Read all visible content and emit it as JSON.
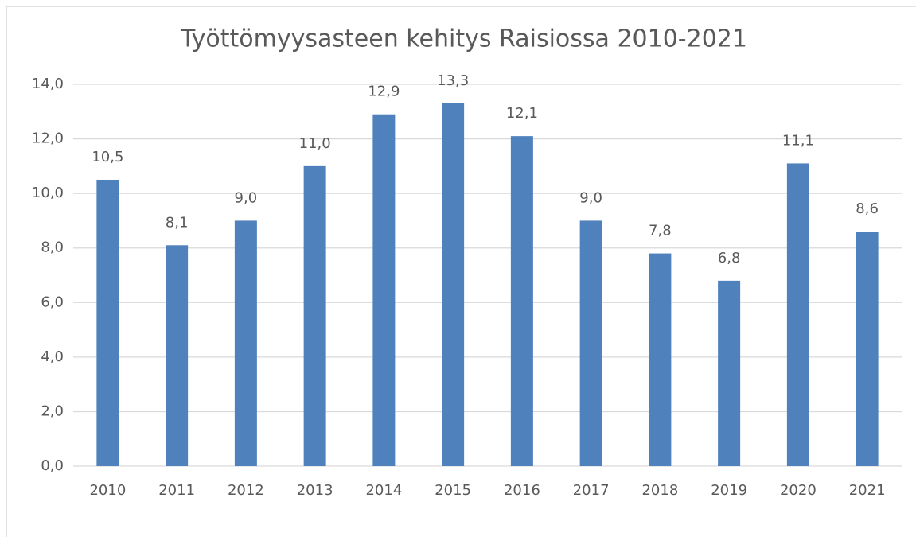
{
  "chart_data": {
    "type": "bar",
    "title": "Työttömyysasteen kehitys Raisiossa 2010-2021",
    "categories": [
      "2010",
      "2011",
      "2012",
      "2013",
      "2014",
      "2015",
      "2016",
      "2017",
      "2018",
      "2019",
      "2020",
      "2021"
    ],
    "values": [
      10.5,
      8.1,
      9.0,
      11.0,
      12.9,
      13.3,
      12.1,
      9.0,
      7.8,
      6.8,
      11.1,
      8.6
    ],
    "value_labels": [
      "10,5",
      "8,1",
      "9,0",
      "11,0",
      "12,9",
      "13,3",
      "12,1",
      "9,0",
      "7,8",
      "6,8",
      "11,1",
      "8,6"
    ],
    "color": "#4f81bd",
    "ylim": [
      0,
      14
    ],
    "yticks": [
      {
        "value": 0,
        "label": "0,0"
      },
      {
        "value": 2,
        "label": "2,0"
      },
      {
        "value": 4,
        "label": "4,0"
      },
      {
        "value": 6,
        "label": "6,0"
      },
      {
        "value": 8,
        "label": "8,0"
      },
      {
        "value": 10,
        "label": "10,0"
      },
      {
        "value": 12,
        "label": "12,0"
      },
      {
        "value": 14,
        "label": "14,0"
      }
    ],
    "grid": true
  }
}
